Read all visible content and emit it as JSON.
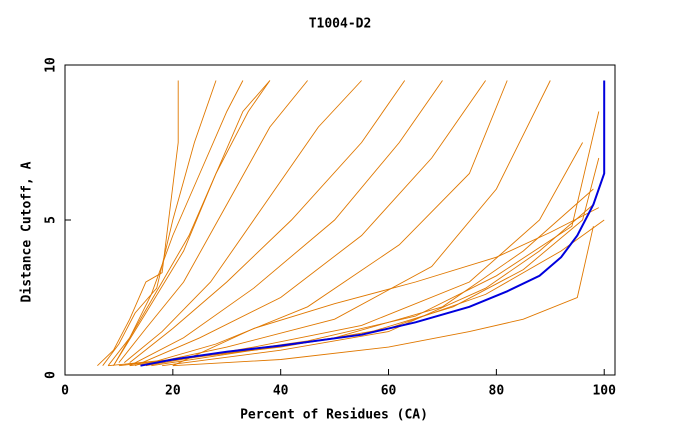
{
  "chart_data": {
    "type": "line",
    "title": "T1004-D2",
    "x_label": "Percent of Residues (CA)",
    "y_label": "Distance Cutoff, A",
    "xlim": [
      0,
      102
    ],
    "ylim": [
      0,
      10
    ],
    "xticks": [
      0,
      20,
      40,
      60,
      80,
      100
    ],
    "yticks": [
      0,
      5,
      10
    ],
    "series": [
      {
        "color": "#e07800",
        "x": [
          6,
          9,
          12,
          15,
          18,
          21,
          21
        ],
        "values": [
          0.3,
          0.8,
          1.8,
          3,
          3.3,
          7.5,
          9.5
        ]
      },
      {
        "color": "#e07800",
        "x": [
          7,
          10,
          13,
          17,
          20,
          24,
          28
        ],
        "values": [
          0.3,
          1,
          2,
          2.8,
          5,
          7.5,
          9.5
        ]
      },
      {
        "color": "#e07800",
        "x": [
          8,
          12,
          16,
          20,
          25,
          30,
          33
        ],
        "values": [
          0.3,
          1.2,
          2.6,
          4.5,
          6.5,
          8.5,
          9.5
        ]
      },
      {
        "color": "#e07800",
        "x": [
          9,
          13,
          18,
          23,
          28,
          34,
          38
        ],
        "values": [
          0.3,
          1.5,
          3,
          4.5,
          6.5,
          8.5,
          9.5
        ]
      },
      {
        "color": "#e07800",
        "x": [
          10,
          15,
          22,
          30,
          38,
          45
        ],
        "values": [
          0.4,
          1.5,
          3,
          5.5,
          8,
          9.5
        ]
      },
      {
        "color": "#e07800",
        "x": [
          11,
          18,
          27,
          37,
          47,
          55
        ],
        "values": [
          0.4,
          1.4,
          3,
          5.5,
          8,
          9.5
        ]
      },
      {
        "color": "#e07800",
        "x": [
          12,
          20,
          30,
          42,
          55,
          63
        ],
        "values": [
          0.4,
          1.5,
          3,
          5,
          7.5,
          9.5
        ]
      },
      {
        "color": "#e07800",
        "x": [
          12,
          22,
          35,
          50,
          62,
          70
        ],
        "values": [
          0.3,
          1.2,
          2.8,
          5,
          7.5,
          9.5
        ]
      },
      {
        "color": "#e07800",
        "x": [
          13,
          25,
          40,
          55,
          68,
          78
        ],
        "values": [
          0.3,
          1.2,
          2.5,
          4.5,
          7,
          9.5
        ]
      },
      {
        "color": "#e07800",
        "x": [
          14,
          28,
          45,
          62,
          75,
          82
        ],
        "values": [
          0.3,
          1,
          2.2,
          4.2,
          6.5,
          9.5
        ]
      },
      {
        "color": "#e07800",
        "x": [
          14,
          30,
          50,
          68,
          80,
          90
        ],
        "values": [
          0.3,
          0.9,
          1.8,
          3.5,
          6,
          9.5
        ]
      },
      {
        "color": "#e07800",
        "x": [
          15,
          35,
          55,
          75,
          88,
          96
        ],
        "values": [
          0.3,
          0.9,
          1.6,
          3,
          5,
          7.5
        ]
      },
      {
        "color": "#e07800",
        "x": [
          12,
          30,
          50,
          70,
          85,
          98
        ],
        "values": [
          0.3,
          0.7,
          1.2,
          2.2,
          4,
          6
        ]
      },
      {
        "color": "#e07800",
        "x": [
          10,
          25,
          45,
          65,
          80,
          94,
          99
        ],
        "values": [
          0.3,
          0.6,
          1.1,
          1.9,
          3.2,
          4.8,
          8.5
        ]
      },
      {
        "color": "#e07800",
        "x": [
          8,
          20,
          40,
          60,
          78,
          92,
          100
        ],
        "values": [
          0.3,
          0.5,
          0.9,
          1.5,
          2.6,
          4,
          5
        ]
      },
      {
        "color": "#e07800",
        "x": [
          16,
          35,
          55,
          72,
          85,
          96,
          99
        ],
        "values": [
          0.3,
          0.8,
          1.3,
          2.2,
          3.4,
          5,
          7
        ]
      },
      {
        "color": "#e07800",
        "x": [
          18,
          40,
          60,
          78,
          88,
          98
        ],
        "values": [
          0.3,
          0.8,
          1.4,
          2.8,
          4,
          5.5
        ]
      },
      {
        "color": "#e07800",
        "x": [
          20,
          40,
          60,
          75,
          85,
          95,
          98
        ],
        "values": [
          0.3,
          0.5,
          0.9,
          1.4,
          1.8,
          2.5,
          4.8
        ]
      },
      {
        "color": "#e07800",
        "x": [
          9,
          15,
          22,
          28,
          33,
          38
        ],
        "values": [
          0.3,
          2,
          4,
          6.5,
          8.5,
          9.5
        ]
      },
      {
        "color": "#e07800",
        "x": [
          20,
          35,
          50,
          65,
          80,
          90,
          99
        ],
        "values": [
          0.3,
          1.5,
          2.3,
          3,
          3.8,
          4.6,
          5.4
        ]
      },
      {
        "color": "#0000dd",
        "x": [
          14,
          20,
          30,
          40,
          55,
          65,
          75,
          82,
          88,
          92,
          95,
          98,
          100,
          100
        ],
        "values": [
          0.3,
          0.5,
          0.75,
          0.95,
          1.3,
          1.7,
          2.2,
          2.7,
          3.2,
          3.8,
          4.5,
          5.5,
          6.5,
          9.5
        ]
      }
    ]
  }
}
